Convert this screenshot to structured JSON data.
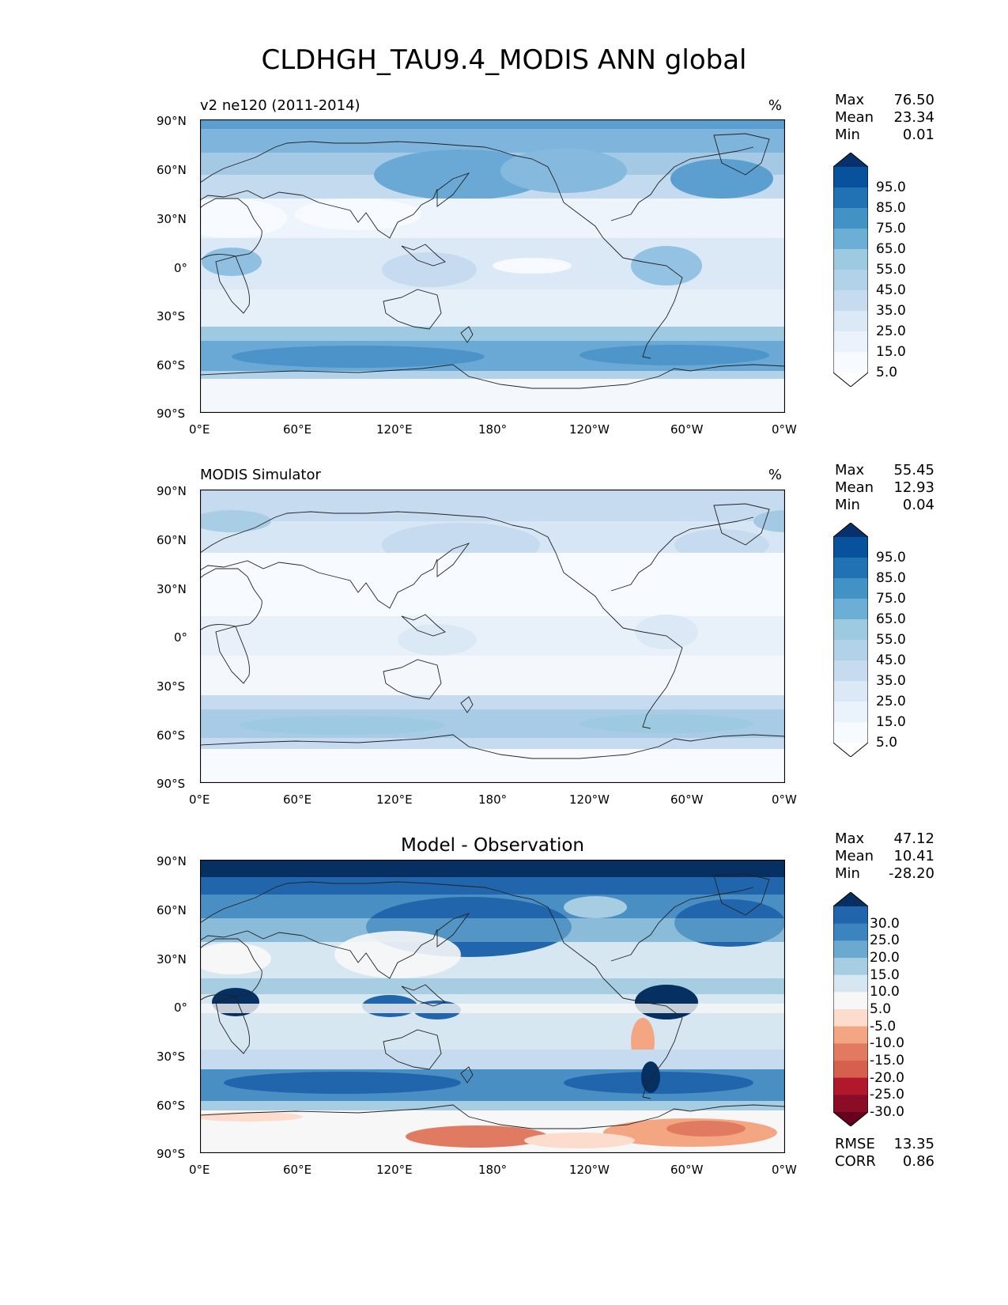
{
  "figure": {
    "title": "CLDHGH_TAU9.4_MODIS ANN global"
  },
  "axes": {
    "lat_ticks": [
      "90°N",
      "60°N",
      "30°N",
      "0°",
      "30°S",
      "60°S",
      "90°S"
    ],
    "lon_ticks": [
      "0°E",
      "60°E",
      "120°E",
      "180°",
      "120°W",
      "60°W",
      "0°W"
    ]
  },
  "panels": [
    {
      "title_left": "v2 ne120 (2011-2014)",
      "title_right": "%",
      "title_center": "",
      "stats": [
        {
          "label": "Max",
          "value": "76.50"
        },
        {
          "label": "Mean",
          "value": "23.34"
        },
        {
          "label": "Min",
          "value": "0.01"
        }
      ],
      "colorbar": {
        "labels": [
          "95.0",
          "85.0",
          "75.0",
          "65.0",
          "55.0",
          "45.0",
          "35.0",
          "25.0",
          "15.0",
          "5.0"
        ],
        "colors": [
          "#08306b",
          "#08519c",
          "#2171b5",
          "#4292c6",
          "#6baed6",
          "#9ecae1",
          "#b2d2ea",
          "#c6dbef",
          "#dbe9f6",
          "#eaf2fb",
          "#f7fbff",
          "#ffffff"
        ]
      },
      "extra_stats": []
    },
    {
      "title_left": "MODIS Simulator",
      "title_right": "%",
      "title_center": "",
      "stats": [
        {
          "label": "Max",
          "value": "55.45"
        },
        {
          "label": "Mean",
          "value": "12.93"
        },
        {
          "label": "Min",
          "value": "0.04"
        }
      ],
      "colorbar": {
        "labels": [
          "95.0",
          "85.0",
          "75.0",
          "65.0",
          "55.0",
          "45.0",
          "35.0",
          "25.0",
          "15.0",
          "5.0"
        ],
        "colors": [
          "#08306b",
          "#08519c",
          "#2171b5",
          "#4292c6",
          "#6baed6",
          "#9ecae1",
          "#b2d2ea",
          "#c6dbef",
          "#dbe9f6",
          "#eaf2fb",
          "#f7fbff",
          "#ffffff"
        ]
      },
      "extra_stats": []
    },
    {
      "title_left": "",
      "title_right": "",
      "title_center": "Model - Observation",
      "stats": [
        {
          "label": "Max",
          "value": "47.12"
        },
        {
          "label": "Mean",
          "value": "10.41"
        },
        {
          "label": "Min",
          "value": "-28.20"
        }
      ],
      "colorbar": {
        "labels": [
          "30.0",
          "25.0",
          "20.0",
          "15.0",
          "10.0",
          "5.0",
          "-5.0",
          "-10.0",
          "-15.0",
          "-20.0",
          "-25.0",
          "-30.0"
        ],
        "colors": [
          "#053061",
          "#2166ac",
          "#3b84c0",
          "#6aa9d0",
          "#a6cde2",
          "#d6e7f1",
          "#f7f7f7",
          "#fbdccd",
          "#f4a582",
          "#e07b62",
          "#d6604d",
          "#b2182b",
          "#8a0c26",
          "#67001f"
        ]
      },
      "extra_stats": [
        {
          "label": "RMSE",
          "value": "13.35"
        },
        {
          "label": "CORR",
          "value": "0.86"
        }
      ]
    }
  ]
}
